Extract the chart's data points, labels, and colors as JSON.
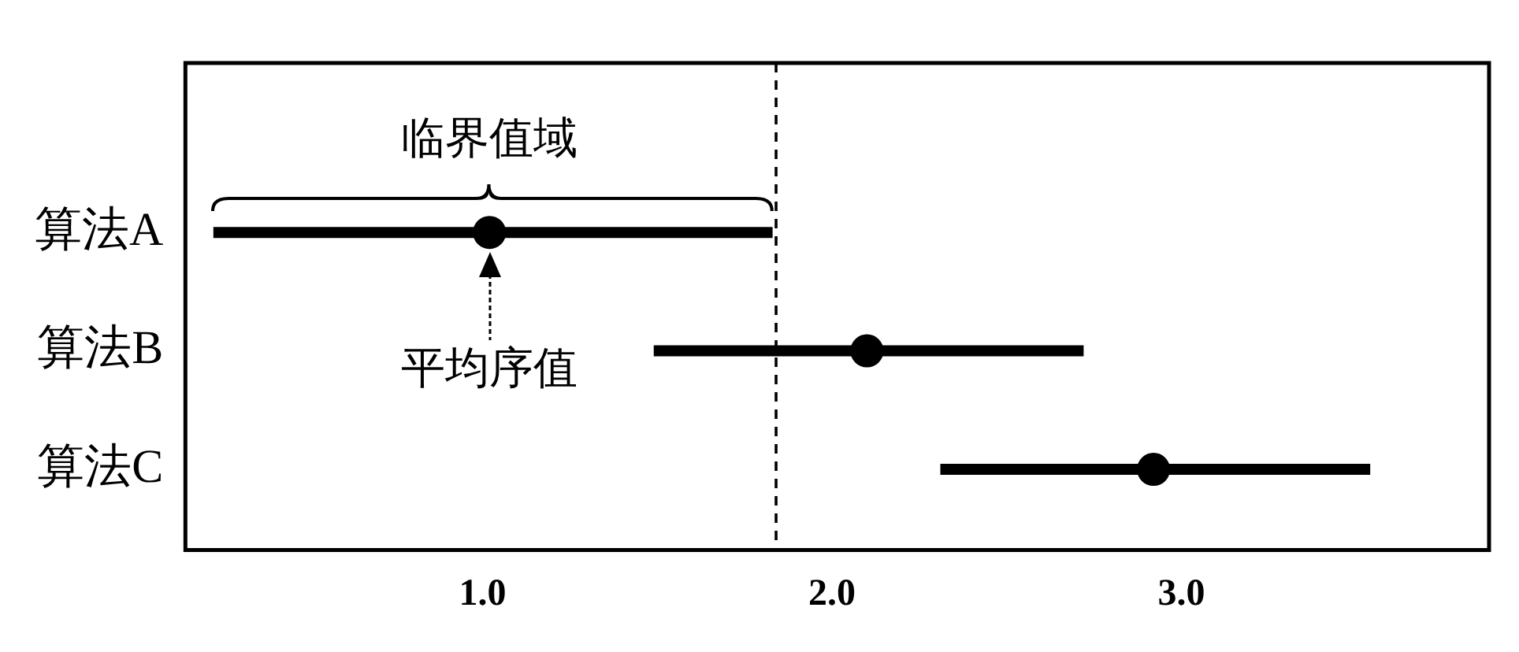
{
  "chart_data": {
    "type": "scatter",
    "orientation": "horizontal",
    "categories": [
      "算法A",
      "算法B",
      "算法C"
    ],
    "values": [
      1.02,
      2.1,
      2.92
    ],
    "errors": [
      [
        0.23,
        1.83
      ],
      [
        1.49,
        2.72
      ],
      [
        2.31,
        3.54
      ]
    ],
    "color": "#000000",
    "xlim": [
      0.15,
      3.88
    ],
    "xticks": [
      {
        "value": 1,
        "label": "1.0"
      },
      {
        "value": 2,
        "label": "2.0"
      },
      {
        "value": 3,
        "label": "3.0"
      }
    ],
    "ref_lines": [
      {
        "axis": "x",
        "value": 1.84,
        "line_style": "dashed"
      }
    ],
    "annotations": [
      {
        "text": "临界值域",
        "x": 1.02,
        "y": "算法A"
      },
      {
        "text": "平均序值",
        "x": 1.02,
        "y": "算法A"
      }
    ],
    "grid": false,
    "legend": false,
    "marker": "circle"
  }
}
